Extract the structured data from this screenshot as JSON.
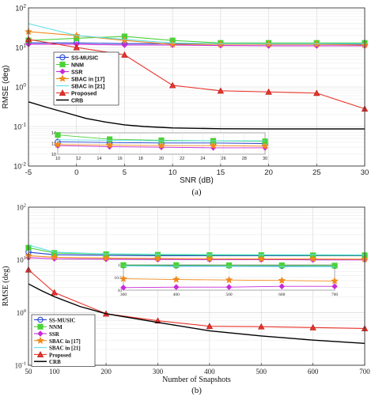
{
  "chart_data": [
    {
      "type": "line",
      "panel_label": "(a)",
      "xlabel": "SNR (dB)",
      "ylabel": "RMSE (deg)",
      "yscale": "log",
      "xlim": [
        -5,
        30
      ],
      "ylim": [
        0.01,
        100
      ],
      "x_ticks": [
        "-5",
        "0",
        "5",
        "10",
        "15",
        "20",
        "25",
        "30"
      ],
      "y_ticks": [
        "10^-2",
        "10^-1",
        "10^0",
        "10^1",
        "10^2"
      ],
      "grid": true,
      "legend_position": "middle-left",
      "x": [
        -5,
        0,
        5,
        10,
        15,
        20,
        25,
        30
      ],
      "series": [
        {
          "name": "SS-MUSIC",
          "color": "#1f3fd0",
          "marker": "circle",
          "values": [
            13,
            13,
            12.5,
            12.5,
            12.2,
            12,
            12,
            12
          ]
        },
        {
          "name": "NNM",
          "color": "#4cd13a",
          "marker": "square",
          "values": [
            15,
            17,
            19,
            15,
            13,
            13,
            13,
            13
          ]
        },
        {
          "name": "SSR",
          "color": "#c82ad8",
          "marker": "diamond",
          "values": [
            12,
            12,
            11.5,
            11.5,
            11.2,
            11,
            11,
            11
          ]
        },
        {
          "name": "SBAC in [17]",
          "color": "#f08a1c",
          "marker": "star",
          "values": [
            25,
            20,
            15,
            12,
            12,
            12,
            12,
            11.5
          ]
        },
        {
          "name": "SBAC in [21]",
          "color": "#5fe0e6",
          "marker": "none",
          "values": [
            40,
            20,
            16,
            13,
            12.5,
            12.5,
            12.5,
            12.5
          ]
        },
        {
          "name": "Proposed",
          "color": "#e8332a",
          "marker": "triangle",
          "values": [
            16,
            10,
            6.5,
            1.1,
            0.8,
            0.75,
            0.7,
            0.28
          ]
        },
        {
          "name": "CRB",
          "color": "#000000",
          "marker": "none",
          "x": [
            -5,
            -3,
            -1,
            1,
            3,
            5,
            7,
            10,
            15,
            20,
            25,
            30
          ],
          "values": [
            0.42,
            0.3,
            0.22,
            0.16,
            0.13,
            0.11,
            0.1,
            0.092,
            0.088,
            0.087,
            0.087,
            0.087
          ]
        }
      ],
      "inset": {
        "xlim": [
          10,
          30
        ],
        "ylim": [
          10,
          14
        ],
        "x_ticks": [
          "10",
          "12",
          "14",
          "16",
          "18",
          "20",
          "22",
          "24",
          "26",
          "28",
          "30"
        ],
        "y_ticks": [
          "10",
          "12",
          "14"
        ],
        "x": [
          10,
          15,
          20,
          25,
          30
        ],
        "series": [
          {
            "name": "SS-MUSIC",
            "color": "#1f3fd0",
            "marker": "circle",
            "values": [
              12.3,
              12.2,
              12.1,
              12.1,
              12.0
            ]
          },
          {
            "name": "NNM",
            "color": "#4cd13a",
            "marker": "square",
            "values": [
              13.6,
              12.8,
              12.6,
              12.5,
              12.4
            ]
          },
          {
            "name": "SSR",
            "color": "#c82ad8",
            "marker": "diamond",
            "values": [
              11.6,
              11.4,
              11.3,
              11.2,
              11.2
            ]
          },
          {
            "name": "SBAC in [17]",
            "color": "#f08a1c",
            "marker": "star",
            "values": [
              11.8,
              11.7,
              11.6,
              11.6,
              11.5
            ]
          },
          {
            "name": "SBAC in [21]",
            "color": "#5fe0e6",
            "marker": "none",
            "values": [
              12.7,
              12.6,
              12.5,
              12.5,
              12.5
            ]
          }
        ]
      }
    },
    {
      "type": "line",
      "panel_label": "(b)",
      "xlabel": "Number of Snapshots",
      "ylabel": "RMSE (deg)",
      "yscale": "log",
      "xlim": [
        50,
        700
      ],
      "ylim": [
        0.1,
        100
      ],
      "x_ticks": [
        "50",
        "100",
        "200",
        "300",
        "400",
        "500",
        "600",
        "700"
      ],
      "y_ticks": [
        "10^-1",
        "10^0",
        "10^1",
        "10^2"
      ],
      "grid": true,
      "legend_position": "bottom-left",
      "x": [
        50,
        100,
        200,
        300,
        400,
        500,
        600,
        700
      ],
      "series": [
        {
          "name": "SS-MUSIC",
          "color": "#1f3fd0",
          "marker": "circle",
          "values": [
            14,
            12.5,
            12.2,
            12,
            12,
            12,
            12,
            12
          ]
        },
        {
          "name": "NNM",
          "color": "#4cd13a",
          "marker": "square",
          "values": [
            17,
            13.5,
            12.8,
            12.5,
            12.3,
            12.3,
            12.2,
            12.2
          ]
        },
        {
          "name": "SSR",
          "color": "#c82ad8",
          "marker": "diamond",
          "values": [
            11,
            10.5,
            10.3,
            10.2,
            10.1,
            10.1,
            10,
            10
          ]
        },
        {
          "name": "SBAC in [17]",
          "color": "#f08a1c",
          "marker": "star",
          "values": [
            12,
            11.2,
            10.8,
            10.6,
            10.5,
            10.4,
            10.4,
            10.3
          ]
        },
        {
          "name": "SBAC in [21]",
          "color": "#5fe0e6",
          "marker": "none",
          "values": [
            19,
            14,
            13,
            12.8,
            12.6,
            12.5,
            12.5,
            12.4
          ]
        },
        {
          "name": "Proposed",
          "color": "#e8332a",
          "marker": "triangle",
          "values": [
            6.5,
            2.4,
            0.95,
            0.7,
            0.55,
            0.54,
            0.52,
            0.5
          ]
        },
        {
          "name": "CRB",
          "color": "#000000",
          "marker": "none",
          "x": [
            50,
            75,
            100,
            150,
            200,
            300,
            400,
            500,
            600,
            700
          ],
          "values": [
            3.5,
            2.6,
            2.0,
            1.3,
            0.95,
            0.65,
            0.45,
            0.36,
            0.3,
            0.26
          ]
        }
      ],
      "inset": {
        "xlim": [
          300,
          700
        ],
        "ylim": [
          10,
          11
        ],
        "x_ticks": [
          "300",
          "400",
          "500",
          "600",
          "700"
        ],
        "y_ticks": [
          "10",
          "10.5",
          "11"
        ],
        "x": [
          300,
          400,
          500,
          600,
          700
        ],
        "series": [
          {
            "name": "SS-MUSIC",
            "color": "#1f3fd0",
            "marker": "circle",
            "values": [
              10.98,
              10.97,
              10.97,
              10.96,
              10.96
            ]
          },
          {
            "name": "NNM",
            "color": "#4cd13a",
            "marker": "square",
            "values": [
              10.99,
              10.99,
              10.98,
              10.98,
              10.97
            ]
          },
          {
            "name": "SSR",
            "color": "#c82ad8",
            "marker": "diamond",
            "values": [
              10.1,
              10.12,
              10.12,
              10.15,
              10.15
            ]
          },
          {
            "name": "SBAC in [17]",
            "color": "#f08a1c",
            "marker": "star",
            "values": [
              10.45,
              10.42,
              10.4,
              10.38,
              10.36
            ]
          },
          {
            "name": "SBAC in [21]",
            "color": "#5fe0e6",
            "marker": "none",
            "values": [
              10.95,
              10.94,
              10.94,
              10.93,
              10.93
            ]
          }
        ]
      }
    }
  ]
}
